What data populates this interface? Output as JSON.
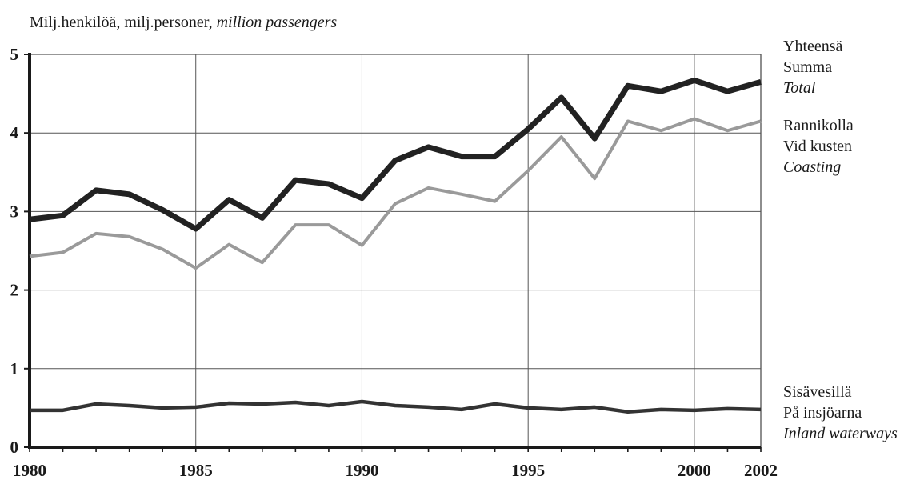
{
  "chart_data": {
    "type": "line",
    "title": "",
    "ylabel_parts": [
      {
        "text": "Milj.henkilöä, milj.personer, ",
        "italic": false
      },
      {
        "text": "million passengers",
        "italic": true
      }
    ],
    "xlabel": "",
    "x": [
      1980,
      1981,
      1982,
      1983,
      1984,
      1985,
      1986,
      1987,
      1988,
      1989,
      1990,
      1991,
      1992,
      1993,
      1994,
      1995,
      1996,
      1997,
      1998,
      1999,
      2000,
      2001,
      2002
    ],
    "xlim": [
      1980,
      2002
    ],
    "ylim": [
      0,
      5
    ],
    "x_ticks": [
      "1980",
      "1985",
      "1990",
      "1995",
      "2000",
      "2002"
    ],
    "x_tick_values": [
      1980,
      1985,
      1990,
      1995,
      2000,
      2002
    ],
    "x_gridlines": [
      1985,
      1990,
      1995,
      2000
    ],
    "y_ticks": [
      "0",
      "1",
      "2",
      "3",
      "4",
      "5"
    ],
    "y_tick_values": [
      0,
      1,
      2,
      3,
      4,
      5
    ],
    "grid": true,
    "legend_placement": "right",
    "series": [
      {
        "id": "total",
        "labels": [
          "Yhteensä",
          "Summa",
          "Total"
        ],
        "color": "#222222",
        "values": [
          2.9,
          2.95,
          3.27,
          3.22,
          3.02,
          2.78,
          3.15,
          2.92,
          3.4,
          3.35,
          3.17,
          3.65,
          3.82,
          3.7,
          3.7,
          4.05,
          4.45,
          3.93,
          4.6,
          4.53,
          4.67,
          4.53,
          4.65
        ]
      },
      {
        "id": "coasting",
        "labels": [
          "Rannikolla",
          "Vid kusten",
          "Coasting"
        ],
        "color": "#9a9a9a",
        "values": [
          2.43,
          2.48,
          2.72,
          2.68,
          2.52,
          2.28,
          2.58,
          2.35,
          2.83,
          2.83,
          2.57,
          3.1,
          3.3,
          3.22,
          3.13,
          3.52,
          3.95,
          3.42,
          4.15,
          4.03,
          4.18,
          4.03,
          4.15
        ]
      },
      {
        "id": "inland",
        "labels": [
          "Sisävesillä",
          "På insjöarna",
          "Inland waterways"
        ],
        "color": "#333333",
        "values": [
          0.47,
          0.47,
          0.55,
          0.53,
          0.5,
          0.51,
          0.56,
          0.55,
          0.57,
          0.53,
          0.58,
          0.53,
          0.51,
          0.48,
          0.55,
          0.5,
          0.48,
          0.51,
          0.45,
          0.48,
          0.47,
          0.49,
          0.48
        ]
      }
    ]
  }
}
